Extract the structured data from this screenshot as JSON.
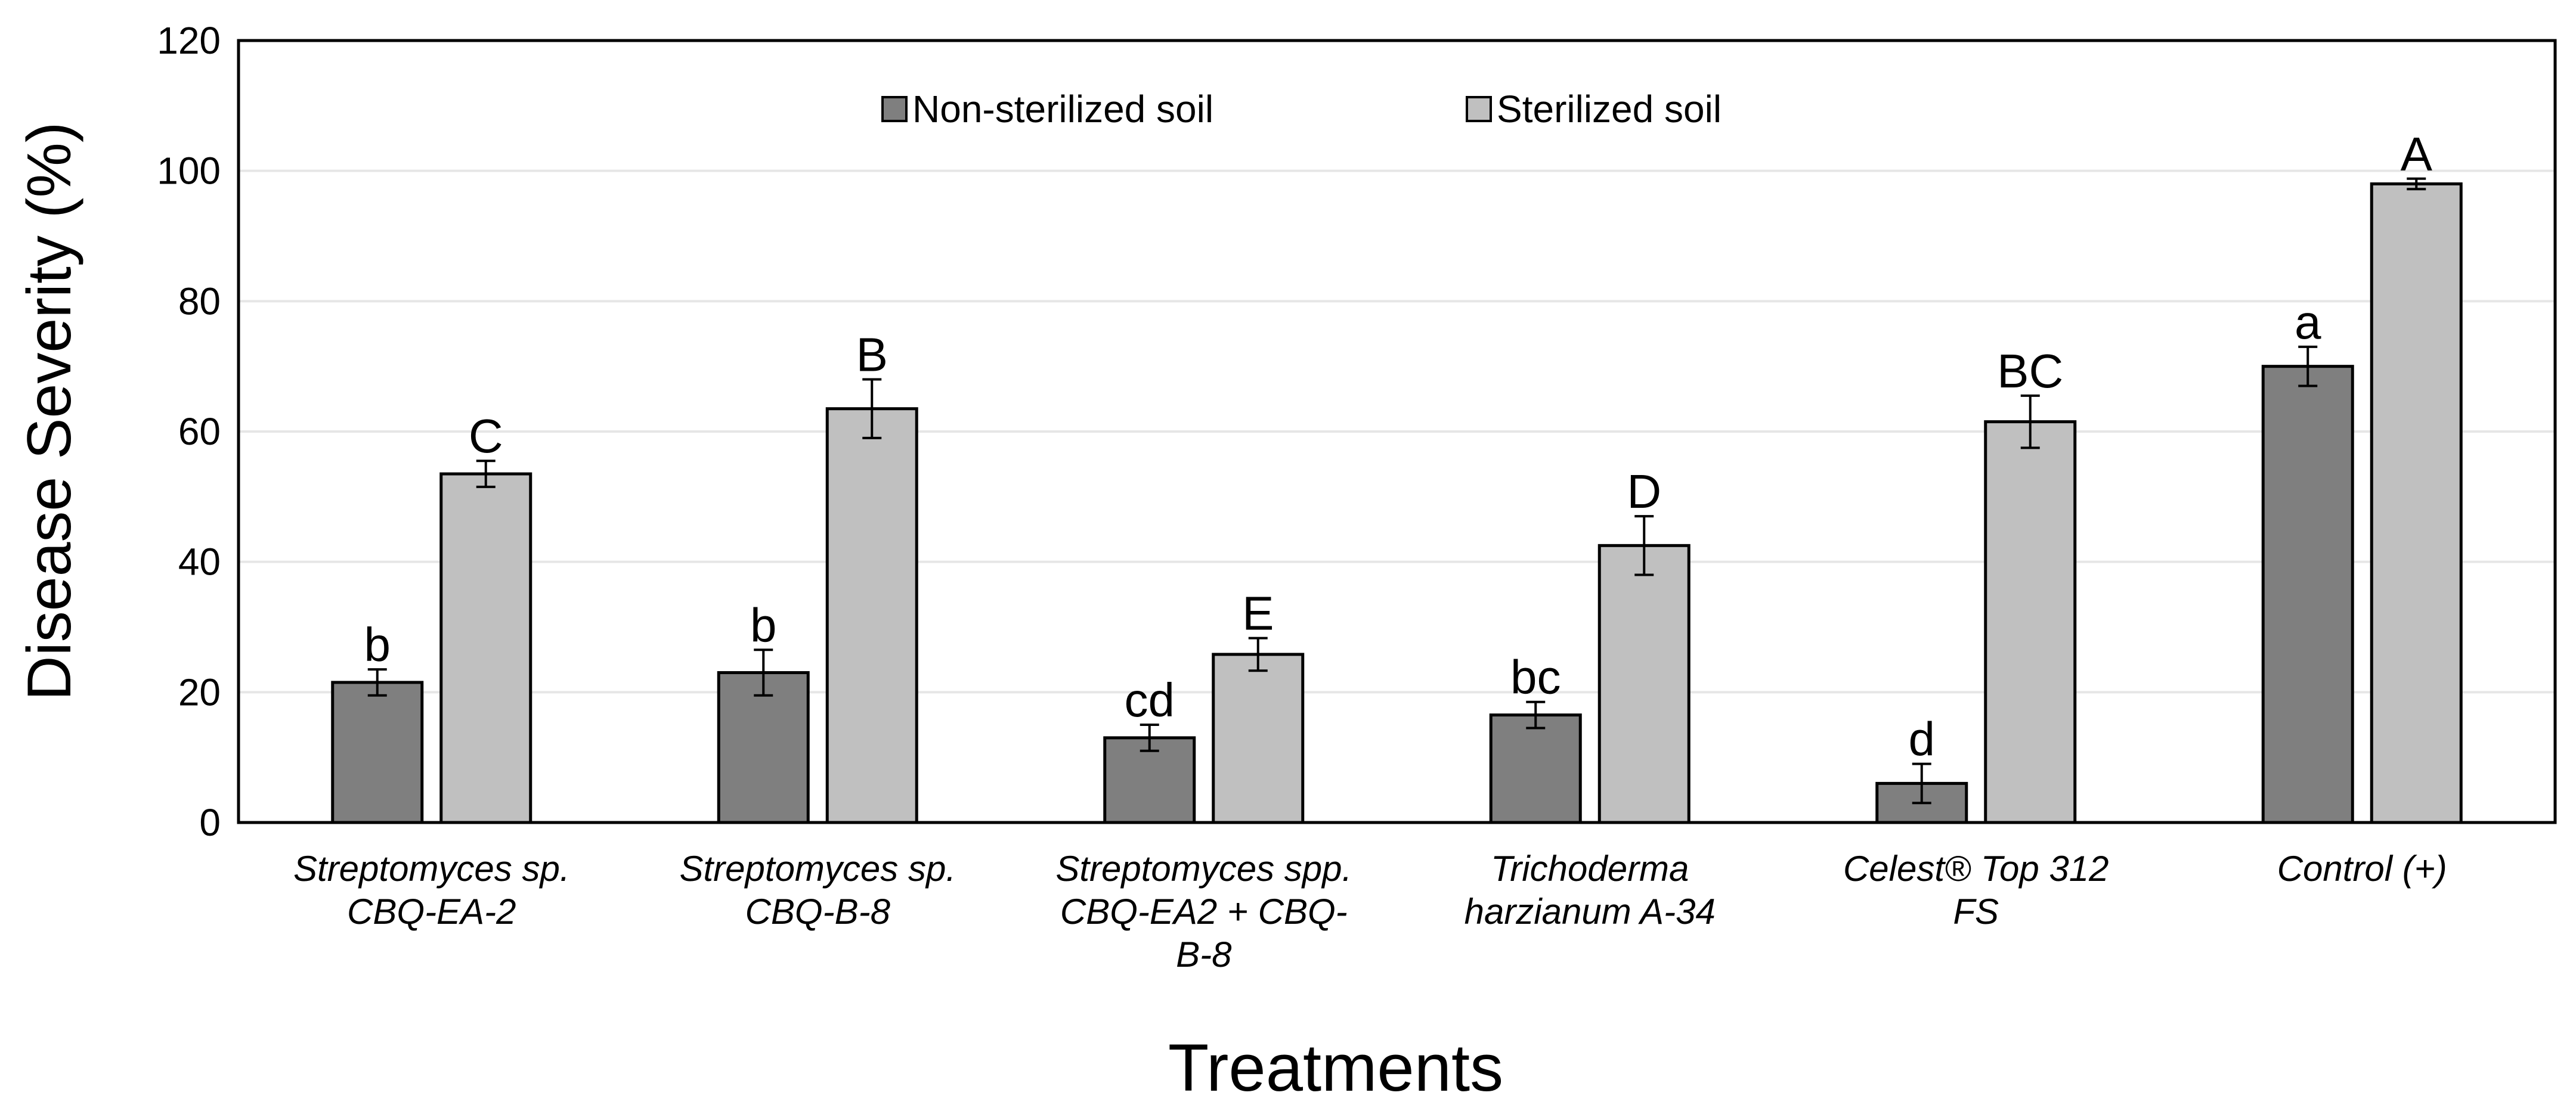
{
  "chart_data": {
    "type": "bar",
    "title": "",
    "xlabel": "Treatments",
    "ylabel": "Disease Severity (%)",
    "ylim": [
      0,
      120
    ],
    "yticks": [
      0,
      20,
      40,
      60,
      80,
      100,
      120
    ],
    "grid": true,
    "legend_position": "top-center",
    "categories": [
      [
        "Streptomyces sp.",
        "CBQ-EA-2"
      ],
      [
        "Streptomyces sp.",
        "CBQ-B-8"
      ],
      [
        "Streptomyces spp.",
        "CBQ-EA2 + CBQ-",
        "B-8"
      ],
      [
        "Trichoderma",
        "harzianum A-34"
      ],
      [
        "Celest® Top 312",
        "FS"
      ],
      [
        "Control (+)"
      ]
    ],
    "series": [
      {
        "name": "Non-sterilized soil",
        "color": "#7f7f7f",
        "values": [
          21.5,
          23,
          13,
          16.5,
          6,
          70
        ],
        "errors": [
          2,
          3.5,
          2,
          2,
          3,
          3
        ],
        "letters": [
          "b",
          "b",
          "cd",
          "bc",
          "d",
          "a"
        ]
      },
      {
        "name": "Sterilized soil",
        "color": "#c0c0c0",
        "values": [
          53.5,
          63.5,
          25.8,
          42.5,
          61.5,
          98
        ],
        "errors": [
          2,
          4.5,
          2.5,
          4.5,
          4,
          0.8
        ],
        "letters": [
          "C",
          "B",
          "E",
          "D",
          "BC",
          "A"
        ]
      }
    ]
  }
}
